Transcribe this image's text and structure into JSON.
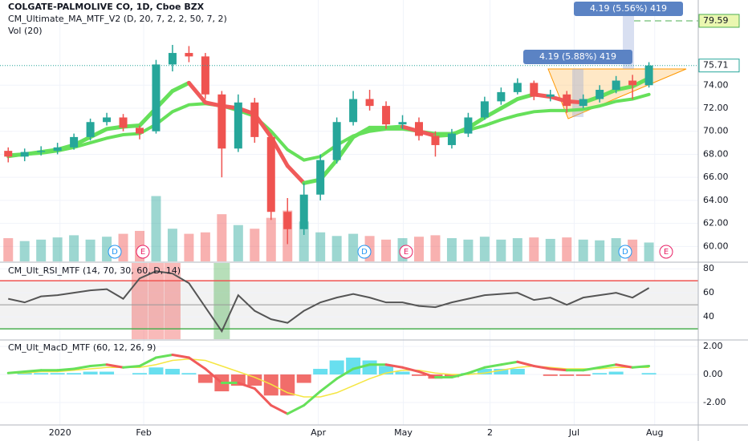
{
  "chart_data": [
    {
      "type": "candlestick",
      "title": "COLGATE-PALMOLIVE CO, 1D, Cboe BZX",
      "indicator": "CM_Ultimate_MA_MTF_V2 (D, 20, 7, 2, 2, 50, 7, 2)",
      "volume_title": "Vol (20)",
      "x": [
        2,
        6,
        10,
        14,
        18,
        22,
        26,
        30,
        34,
        38,
        42,
        46,
        50,
        54,
        58,
        62,
        66,
        70,
        74,
        78,
        82,
        86,
        90,
        94,
        98,
        102,
        106,
        110,
        114,
        118,
        122,
        126,
        130,
        134,
        138,
        142,
        146,
        150,
        154,
        158
      ],
      "open": [
        68.3,
        67.8,
        68.2,
        68.3,
        68.6,
        69.5,
        70.8,
        71.2,
        70.3,
        70.0,
        75.8,
        76.8,
        76.5,
        73.2,
        68.5,
        72.5,
        69.5,
        63.0,
        61.5,
        64.5,
        67.5,
        70.8,
        72.8,
        72.2,
        70.6,
        70.8,
        69.6,
        68.8,
        69.8,
        71.2,
        72.6,
        73.4,
        74.2,
        73.0,
        73.2,
        72.2,
        72.8,
        73.6,
        74.4,
        74.0
      ],
      "high": [
        68.6,
        68.5,
        68.7,
        69.0,
        69.8,
        71.1,
        71.6,
        71.5,
        70.5,
        76.2,
        77.5,
        77.4,
        76.8,
        73.5,
        73.2,
        72.9,
        69.8,
        64.2,
        65.5,
        68.0,
        71.2,
        73.5,
        73.6,
        72.6,
        71.4,
        71.2,
        70.0,
        70.2,
        71.6,
        73.0,
        73.8,
        74.6,
        74.4,
        73.6,
        73.5,
        73.2,
        74.0,
        74.8,
        74.9,
        76.0
      ],
      "low": [
        67.3,
        67.4,
        67.9,
        68.0,
        68.4,
        69.2,
        70.5,
        70.0,
        69.3,
        69.8,
        75.2,
        76.0,
        72.8,
        66.0,
        68.2,
        69.0,
        62.3,
        60.2,
        61.0,
        64.0,
        67.2,
        70.5,
        71.8,
        70.2,
        70.2,
        69.2,
        67.8,
        68.5,
        69.5,
        71.0,
        72.3,
        73.2,
        72.7,
        72.6,
        71.6,
        72.0,
        72.5,
        73.3,
        72.8,
        73.8
      ],
      "close": [
        67.8,
        68.2,
        68.3,
        68.6,
        69.5,
        70.8,
        71.2,
        70.3,
        69.8,
        75.8,
        76.8,
        76.5,
        73.2,
        68.5,
        72.5,
        69.5,
        63.0,
        61.5,
        64.5,
        67.5,
        70.8,
        72.8,
        72.2,
        70.6,
        70.8,
        69.6,
        68.8,
        69.8,
        71.2,
        72.6,
        73.4,
        74.2,
        73.0,
        73.2,
        72.2,
        72.8,
        73.6,
        74.4,
        74.0,
        75.71
      ],
      "volume": [
        3.2,
        2.8,
        3.0,
        3.3,
        3.6,
        3.0,
        3.4,
        3.8,
        4.2,
        9.0,
        4.5,
        3.8,
        4.0,
        6.5,
        5.0,
        4.5,
        6.0,
        7.0,
        5.5,
        4.0,
        3.5,
        3.8,
        3.5,
        3.0,
        3.2,
        3.4,
        3.6,
        3.2,
        3.0,
        3.4,
        3.0,
        3.2,
        3.3,
        3.1,
        3.3,
        3.0,
        2.9,
        3.2,
        3.0,
        2.6
      ],
      "ma_fast": [
        67.9,
        68.0,
        68.2,
        68.4,
        68.8,
        69.5,
        70.2,
        70.4,
        70.5,
        72.0,
        73.5,
        74.2,
        72.5,
        72.2,
        72.0,
        71.5,
        69.5,
        67.0,
        65.5,
        65.8,
        67.5,
        69.5,
        70.3,
        70.3,
        70.4,
        70.0,
        69.6,
        69.7,
        70.3,
        71.2,
        72.0,
        72.8,
        73.2,
        73.0,
        72.6,
        72.5,
        73.0,
        73.6,
        73.9,
        74.6
      ],
      "ma_slow": [
        67.8,
        68.0,
        68.1,
        68.3,
        68.6,
        69.0,
        69.4,
        69.7,
        69.8,
        70.6,
        71.7,
        72.3,
        72.4,
        72.2,
        71.8,
        71.3,
        70.0,
        68.4,
        67.5,
        67.8,
        68.8,
        69.6,
        70.0,
        70.2,
        70.2,
        70.0,
        69.8,
        69.8,
        70.1,
        70.5,
        71.0,
        71.4,
        71.7,
        71.8,
        71.8,
        71.9,
        72.2,
        72.6,
        72.8,
        73.2
      ],
      "up_color": "#26a69a",
      "down_color": "#ef5350",
      "ma_up_color": "#66e05a",
      "ma_down_color": "#f05a5a",
      "last_price": 75.71,
      "target_price": 79.59,
      "annotations": [
        "4.19 (5.88%) 419",
        "4.19 (5.56%) 419"
      ],
      "events": [
        "D",
        "E",
        "D",
        "E",
        "D",
        "E"
      ],
      "xlim": [
        0,
        170
      ],
      "ylim": [
        58.7,
        81.4
      ],
      "volume_lim": [
        0,
        36
      ],
      "yticks": [
        {
          "value": 60,
          "label": "60.00"
        },
        {
          "value": 62,
          "label": "62.00"
        },
        {
          "value": 64,
          "label": "64.00"
        },
        {
          "value": 66,
          "label": "66.00"
        },
        {
          "value": 68,
          "label": "68.00"
        },
        {
          "value": 70,
          "label": "70.00"
        },
        {
          "value": 72,
          "label": "72.00"
        },
        {
          "value": 74,
          "label": "74.00"
        }
      ]
    },
    {
      "type": "rsi",
      "title": "CM_Ult_RSI_MTF (14, 70, 30, 60, D, 14)",
      "x": [
        2,
        6,
        10,
        14,
        18,
        22,
        26,
        30,
        34,
        38,
        42,
        46,
        50,
        54,
        58,
        62,
        66,
        70,
        74,
        78,
        82,
        86,
        90,
        94,
        98,
        102,
        106,
        110,
        114,
        118,
        122,
        126,
        130,
        134,
        138,
        142,
        146,
        150,
        154,
        158
      ],
      "values": [
        55,
        52,
        57,
        58,
        60,
        62,
        63,
        55,
        72,
        78,
        76,
        68,
        48,
        28,
        58,
        45,
        38,
        35,
        45,
        52,
        56,
        59,
        56,
        52,
        52,
        49,
        48,
        52,
        55,
        58,
        59,
        60,
        54,
        56,
        50,
        56,
        58,
        60,
        56,
        64
      ],
      "color": "#555555",
      "upper": 70,
      "lower": 30,
      "middle": 50,
      "xlim": [
        0,
        170
      ],
      "ylim": [
        21.4,
        84.8
      ],
      "yticks": [
        40,
        60,
        80
      ]
    },
    {
      "type": "macd",
      "title": "CM_Ult_MacD_MTF (60, 12, 26, 9)",
      "x": [
        2,
        6,
        10,
        14,
        18,
        22,
        26,
        30,
        34,
        38,
        42,
        46,
        50,
        54,
        58,
        62,
        66,
        70,
        74,
        78,
        82,
        86,
        90,
        94,
        98,
        102,
        106,
        110,
        114,
        118,
        122,
        126,
        130,
        134,
        138,
        142,
        146,
        150,
        154,
        158
      ],
      "macd": [
        0.1,
        0.2,
        0.3,
        0.3,
        0.4,
        0.6,
        0.7,
        0.5,
        0.6,
        1.2,
        1.4,
        1.2,
        0.4,
        -0.6,
        -0.6,
        -1.0,
        -2.2,
        -2.8,
        -2.2,
        -1.2,
        -0.3,
        0.4,
        0.7,
        0.7,
        0.5,
        0.2,
        -0.2,
        -0.2,
        0.1,
        0.5,
        0.7,
        0.9,
        0.6,
        0.4,
        0.3,
        0.3,
        0.5,
        0.7,
        0.5,
        0.6
      ],
      "signal": [
        0.1,
        0.1,
        0.2,
        0.2,
        0.3,
        0.4,
        0.5,
        0.5,
        0.5,
        0.7,
        1.0,
        1.1,
        1.0,
        0.6,
        0.2,
        -0.2,
        -0.7,
        -1.3,
        -1.6,
        -1.6,
        -1.3,
        -0.8,
        -0.3,
        0.1,
        0.3,
        0.3,
        0.1,
        0.0,
        0.0,
        0.1,
        0.3,
        0.5,
        0.6,
        0.5,
        0.4,
        0.4,
        0.4,
        0.5,
        0.5,
        0.5
      ],
      "histogram": [
        0,
        0.1,
        0.1,
        0.1,
        0.1,
        0.2,
        0.2,
        0,
        0.1,
        0.5,
        0.4,
        0.1,
        -0.6,
        -1.2,
        -0.8,
        -0.8,
        -1.5,
        -1.5,
        -0.6,
        0.4,
        1.0,
        1.2,
        1.0,
        0.6,
        0.2,
        -0.1,
        -0.3,
        -0.2,
        0.1,
        0.4,
        0.4,
        0.4,
        0,
        -0.1,
        -0.1,
        -0.1,
        0.1,
        0.2,
        0,
        0.1
      ],
      "up_color": "#66e05a",
      "down_color": "#f05a5a",
      "signal_color": "#f5e642",
      "hist_up_color": "#4dd9ec",
      "hist_down_color": "#ef5350",
      "xlim": [
        0,
        170
      ],
      "ylim": [
        -3.54,
        2.4
      ],
      "yticks": [
        {
          "value": 2,
          "label": "2.00"
        },
        {
          "value": 0,
          "label": "0.00"
        },
        {
          "value": -2,
          "label": "-2.00"
        }
      ],
      "xticks": [
        {
          "value": 14.6,
          "label": "2020"
        },
        {
          "value": 35,
          "label": "Feb"
        },
        {
          "value": 77.5,
          "label": "Apr"
        },
        {
          "value": 98.2,
          "label": "May"
        },
        {
          "value": 119.3,
          "label": "2"
        },
        {
          "value": 139.8,
          "label": "Jul"
        },
        {
          "value": 159.4,
          "label": "Aug"
        }
      ]
    }
  ]
}
